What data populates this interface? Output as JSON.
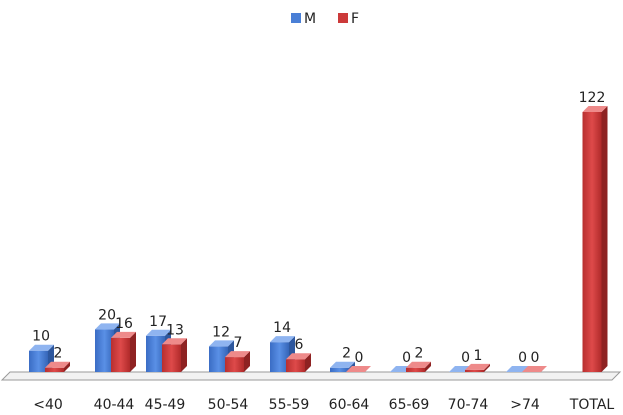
{
  "chart_data": {
    "type": "bar",
    "style": "3d-clustered-column",
    "categories": [
      "<40",
      "40-44",
      "45-49",
      "50-54",
      "55-59",
      "60-64",
      "65-69",
      "70-74",
      ">74",
      "TOTAL"
    ],
    "series": [
      {
        "name": "M",
        "color": "#4a7fd6",
        "values": [
          10,
          20,
          17,
          12,
          14,
          2,
          0,
          0,
          0,
          null
        ]
      },
      {
        "name": "F",
        "color": "#cc3a3a",
        "values": [
          2,
          16,
          13,
          7,
          6,
          0,
          2,
          1,
          0,
          122
        ]
      }
    ],
    "legend": {
      "position": "top-center",
      "entries": [
        "M",
        "F"
      ]
    },
    "title": "",
    "xlabel": "",
    "ylabel": "",
    "ylim": [
      0,
      122
    ],
    "grid": false,
    "data_labels": true
  }
}
